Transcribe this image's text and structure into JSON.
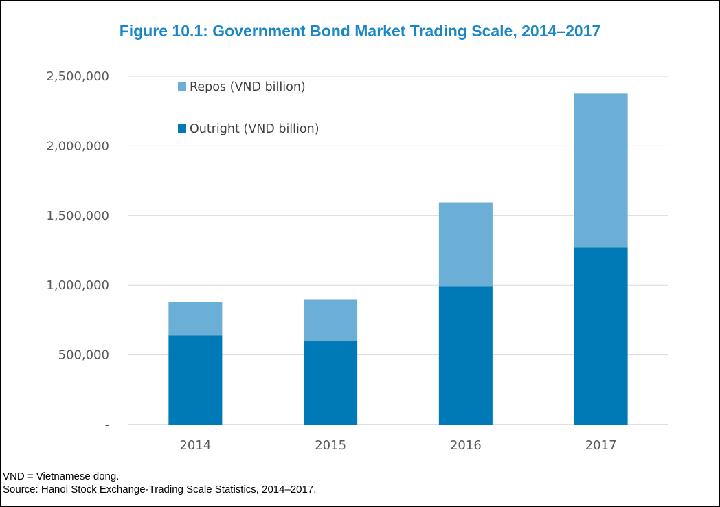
{
  "figure": {
    "title": "Figure 10.1: Government Bond Market Trading Scale, 2014–2017",
    "note": "VND = Vietnamese dong.",
    "source": "Source: Hanoi Stock Exchange-Trading Scale Statistics, 2014–2017."
  },
  "chart_data": {
    "type": "bar",
    "stacked": true,
    "title": "Figure 10.1: Government Bond Market Trading Scale, 2014–2017",
    "xlabel": "",
    "ylabel": "",
    "categories": [
      "2014",
      "2015",
      "2016",
      "2017"
    ],
    "series": [
      {
        "name": "Outright (VND billion)",
        "values": [
          640000,
          600000,
          990000,
          1270000
        ],
        "color": "#0079b7"
      },
      {
        "name": "Repos (VND billion)",
        "values": [
          240000,
          300000,
          605000,
          1105000
        ],
        "color": "#6baed6"
      }
    ],
    "ylim": [
      0,
      2500000
    ],
    "yticks": [
      0,
      500000,
      1000000,
      1500000,
      2000000,
      2500000
    ],
    "ytick_labels": [
      "-",
      "500,000",
      "1,000,000",
      "1,500,000",
      "2,000,000",
      "2,500,000"
    ],
    "legend_order": [
      "Repos (VND billion)",
      "Outright (VND billion)"
    ],
    "legend_position": "top-left",
    "grid": true
  }
}
